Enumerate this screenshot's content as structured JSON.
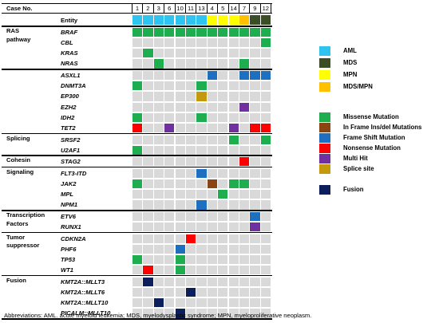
{
  "header": {
    "case_label": "Case No.",
    "entity_label": "Entity",
    "cases": [
      "1",
      "2",
      "3",
      "6",
      "10",
      "11",
      "13",
      "4",
      "5",
      "14",
      "7",
      "9",
      "12"
    ],
    "entity": [
      "AML",
      "AML",
      "AML",
      "AML",
      "AML",
      "AML",
      "AML",
      "MPN",
      "MPN",
      "MPN",
      "MDS/MPN",
      "MDS",
      "MDS"
    ]
  },
  "groups": [
    {
      "label": "RAS\npathway",
      "rows": [
        {
          "gene": "BRAF",
          "cells": [
            "M",
            "M",
            "M",
            "M",
            "M",
            "M",
            "M",
            "M",
            "M",
            "M",
            "M",
            "M",
            "M"
          ]
        },
        {
          "gene": "CBL",
          "cells": [
            "",
            "",
            "",
            "",
            "",
            "",
            "",
            "",
            "",
            "",
            "",
            "",
            "M"
          ]
        },
        {
          "gene": "KRAS",
          "cells": [
            "",
            "M",
            "",
            "",
            "",
            "",
            "",
            "",
            "",
            "",
            "",
            "",
            ""
          ]
        },
        {
          "gene": "NRAS",
          "cells": [
            "",
            "",
            "M",
            "",
            "",
            "",
            "",
            "",
            "",
            "",
            "M",
            "",
            ""
          ]
        }
      ]
    },
    {
      "label": "",
      "rows": [
        {
          "gene": "ASXL1",
          "cells": [
            "",
            "",
            "",
            "",
            "",
            "",
            "",
            "F",
            "",
            "",
            "F",
            "F",
            "F"
          ]
        },
        {
          "gene": "DNMT3A",
          "cells": [
            "M",
            "",
            "",
            "",
            "",
            "",
            "M",
            "",
            "",
            "",
            "",
            "",
            ""
          ]
        },
        {
          "gene": "EP300",
          "cells": [
            "",
            "",
            "",
            "",
            "",
            "",
            "S",
            "",
            "",
            "",
            "",
            "",
            ""
          ]
        },
        {
          "gene": "EZH2",
          "cells": [
            "",
            "",
            "",
            "",
            "",
            "",
            "",
            "",
            "",
            "",
            "X",
            "",
            ""
          ]
        },
        {
          "gene": "IDH2",
          "cells": [
            "M",
            "",
            "",
            "",
            "",
            "",
            "M",
            "",
            "",
            "",
            "",
            "",
            ""
          ]
        },
        {
          "gene": "TET2",
          "cells": [
            "N",
            "",
            "",
            "X",
            "",
            "",
            "",
            "",
            "",
            "X",
            "",
            "N",
            "N"
          ]
        }
      ]
    },
    {
      "label": "Splicing",
      "rows": [
        {
          "gene": "SRSF2",
          "cells": [
            "",
            "",
            "",
            "",
            "",
            "",
            "",
            "",
            "",
            "M",
            "",
            "",
            "M"
          ]
        },
        {
          "gene": "U2AF1",
          "cells": [
            "M",
            "",
            "",
            "",
            "",
            "",
            "",
            "",
            "",
            "",
            "",
            "",
            ""
          ]
        }
      ]
    },
    {
      "label": "Cohesin",
      "rows": [
        {
          "gene": "STAG2",
          "cells": [
            "",
            "",
            "",
            "",
            "",
            "",
            "",
            "",
            "",
            "",
            "N",
            "",
            ""
          ]
        }
      ]
    },
    {
      "label": "Signaling",
      "rows": [
        {
          "gene": "FLT3-ITD",
          "cells": [
            "",
            "",
            "",
            "",
            "",
            "",
            "F",
            "",
            "",
            "",
            "",
            "",
            ""
          ]
        },
        {
          "gene": "JAK2",
          "cells": [
            "M",
            "",
            "",
            "",
            "",
            "",
            "",
            "I",
            "",
            "M",
            "M",
            "",
            ""
          ]
        },
        {
          "gene": "MPL",
          "cells": [
            "",
            "",
            "",
            "",
            "",
            "",
            "",
            "",
            "M",
            "",
            "",
            "",
            ""
          ]
        },
        {
          "gene": "NPM1",
          "cells": [
            "",
            "",
            "",
            "",
            "",
            "",
            "F",
            "",
            "",
            "",
            "",
            "",
            ""
          ]
        }
      ]
    },
    {
      "label": "Transcription\nFactors",
      "rows": [
        {
          "gene": "ETV6",
          "cells": [
            "",
            "",
            "",
            "",
            "",
            "",
            "",
            "",
            "",
            "",
            "",
            "F",
            ""
          ]
        },
        {
          "gene": "RUNX1",
          "cells": [
            "",
            "",
            "",
            "",
            "",
            "",
            "",
            "",
            "",
            "",
            "",
            "X",
            ""
          ]
        }
      ]
    },
    {
      "label": "Tumor\nsuppressor",
      "rows": [
        {
          "gene": "CDKN2A",
          "cells": [
            "",
            "",
            "",
            "",
            "",
            "N",
            "",
            "",
            "",
            "",
            "",
            "",
            ""
          ]
        },
        {
          "gene": "PHF6",
          "cells": [
            "",
            "",
            "",
            "",
            "F",
            "",
            "",
            "",
            "",
            "",
            "",
            "",
            ""
          ]
        },
        {
          "gene": "TP53",
          "cells": [
            "M",
            "",
            "",
            "",
            "M",
            "",
            "",
            "",
            "",
            "",
            "",
            "",
            ""
          ]
        },
        {
          "gene": "WT1",
          "cells": [
            "",
            "N",
            "",
            "",
            "M",
            "",
            "",
            "",
            "",
            "",
            "",
            "",
            ""
          ]
        }
      ]
    },
    {
      "label": "Fusion",
      "rows": [
        {
          "gene": "KMT2A::MLLT3",
          "cells": [
            "",
            "U",
            "",
            "",
            "",
            "",
            "",
            "",
            "",
            "",
            "",
            "",
            ""
          ]
        },
        {
          "gene": "KMT2A::MLLT6",
          "cells": [
            "",
            "",
            "",
            "",
            "",
            "U",
            "",
            "",
            "",
            "",
            "",
            "",
            ""
          ]
        },
        {
          "gene": "KMT2A::MLLT10",
          "cells": [
            "",
            "",
            "U",
            "",
            "",
            "",
            "",
            "",
            "",
            "",
            "",
            "",
            ""
          ]
        },
        {
          "gene": "PICALM::MLLT10",
          "cells": [
            "",
            "",
            "",
            "",
            "U",
            "",
            "",
            "",
            "",
            "",
            "",
            "",
            ""
          ]
        }
      ]
    }
  ],
  "colors": {
    "AML": "#2ec4ef",
    "MDS": "#3b4f26",
    "MPN": "#ffff00",
    "MDS/MPN": "#ffc000",
    "M": "#1fae4f",
    "I": "#8b4513",
    "F": "#1e6fbf",
    "N": "#ff0000",
    "X": "#7030a0",
    "S": "#c49a0c",
    "U": "#0c1f5c",
    "": "#d9d9d9"
  },
  "legend_entity": [
    {
      "key": "AML",
      "label": "AML"
    },
    {
      "key": "MDS",
      "label": "MDS"
    },
    {
      "key": "MPN",
      "label": "MPN"
    },
    {
      "key": "MDS/MPN",
      "label": "MDS/MPN"
    }
  ],
  "legend_mutation": [
    {
      "key": "M",
      "label": "Missense Mutation"
    },
    {
      "key": "I",
      "label": "In Frame Ins/del Mutations"
    },
    {
      "key": "F",
      "label": "Frame Shift Mutation"
    },
    {
      "key": "N",
      "label": "Nonsense Mutation"
    },
    {
      "key": "X",
      "label": "Multi Hit"
    },
    {
      "key": "S",
      "label": "Splice site"
    },
    {
      "key": "U",
      "label": "Fusion"
    }
  ],
  "abbreviations": "Abbreviations: AML. acute myeloid leukemia; MDS, myelodysplastic syndrome; MPN, myeloproliferative neoplasm."
}
